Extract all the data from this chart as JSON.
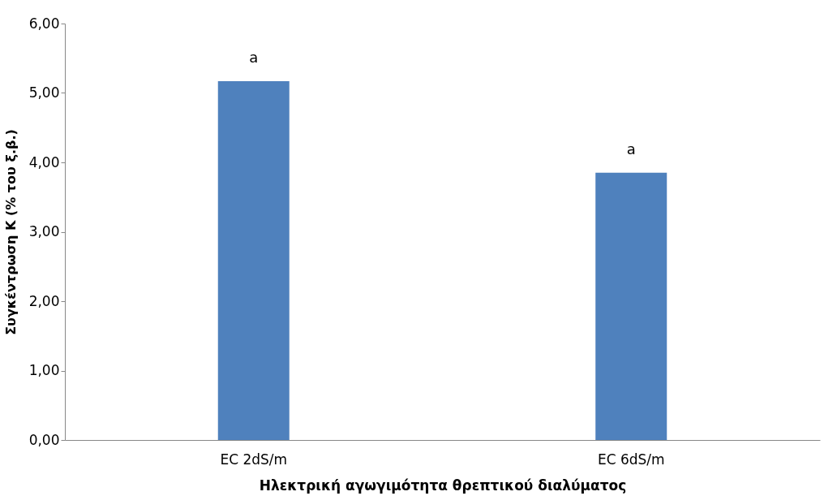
{
  "chart_data": {
    "type": "bar",
    "xlabel": "Ηλεκτρική αγωγιμότητα θρεπτικού διαλύματος",
    "ylabel": "Συγκέντρωση Κ (% του ξ.β.)",
    "categories": [
      "EC 2dS/m",
      "EC 6dS/m"
    ],
    "values": [
      5.17,
      3.85
    ],
    "color": "#4f81bd",
    "ylim": [
      0,
      6
    ],
    "yticks": [
      {
        "value": 0,
        "label": "0,00"
      },
      {
        "value": 1,
        "label": "1,00"
      },
      {
        "value": 2,
        "label": "2,00"
      },
      {
        "value": 3,
        "label": "3,00"
      },
      {
        "value": 4,
        "label": "4,00"
      },
      {
        "value": 5,
        "label": "5,00"
      },
      {
        "value": 6,
        "label": "6,00"
      }
    ],
    "annotations": [
      {
        "text": "a",
        "x": "EC 2dS/m",
        "y": 5.17
      },
      {
        "text": "a",
        "x": "EC 6dS/m",
        "y": 3.85
      }
    ],
    "grid": false
  }
}
